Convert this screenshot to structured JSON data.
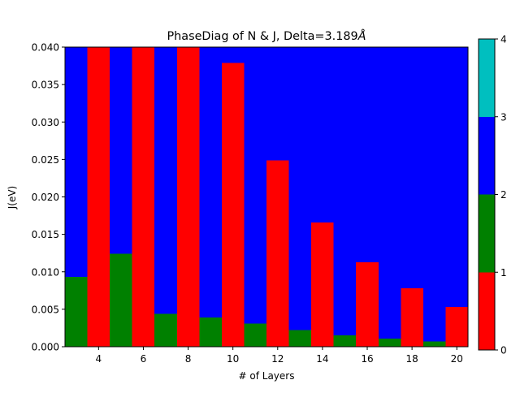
{
  "chart_data": {
    "type": "heatmap",
    "title": "PhaseDiag of N & J, Delta=3.189",
    "title_unit": "Å",
    "xlabel": "# of Layers",
    "ylabel": "J(eV)",
    "xlim": [
      2.5,
      20.5
    ],
    "ylim": [
      0,
      0.04
    ],
    "x_ticks": [
      4,
      6,
      8,
      10,
      12,
      14,
      16,
      18,
      20
    ],
    "x_tick_labels": [
      "4",
      "6",
      "8",
      "10",
      "12",
      "14",
      "16",
      "18",
      "20"
    ],
    "y_ticks": [
      0,
      0.005,
      0.01,
      0.015,
      0.02,
      0.025,
      0.03,
      0.035,
      0.04
    ],
    "y_tick_labels": [
      "0.000",
      "0.005",
      "0.010",
      "0.015",
      "0.020",
      "0.025",
      "0.030",
      "0.035",
      "0.040"
    ],
    "columns": [
      {
        "n": 3,
        "segments": [
          {
            "from": 0,
            "to": 0.0093,
            "phase": 1
          },
          {
            "from": 0.0093,
            "to": 0.04,
            "phase": 2
          }
        ]
      },
      {
        "n": 4,
        "segments": [
          {
            "from": 0,
            "to": 0.04,
            "phase": 0
          }
        ]
      },
      {
        "n": 5,
        "segments": [
          {
            "from": 0,
            "to": 0.0124,
            "phase": 1
          },
          {
            "from": 0.0124,
            "to": 0.04,
            "phase": 2
          }
        ]
      },
      {
        "n": 6,
        "segments": [
          {
            "from": 0,
            "to": 0.04,
            "phase": 0
          }
        ]
      },
      {
        "n": 7,
        "segments": [
          {
            "from": 0,
            "to": 0.0044,
            "phase": 1
          },
          {
            "from": 0.0044,
            "to": 0.04,
            "phase": 2
          }
        ]
      },
      {
        "n": 8,
        "segments": [
          {
            "from": 0,
            "to": 0.04,
            "phase": 0
          }
        ]
      },
      {
        "n": 9,
        "segments": [
          {
            "from": 0,
            "to": 0.0039,
            "phase": 1
          },
          {
            "from": 0.0039,
            "to": 0.04,
            "phase": 2
          }
        ]
      },
      {
        "n": 10,
        "segments": [
          {
            "from": 0,
            "to": 0.0379,
            "phase": 0
          },
          {
            "from": 0.0379,
            "to": 0.04,
            "phase": 2
          }
        ]
      },
      {
        "n": 11,
        "segments": [
          {
            "from": 0,
            "to": 0.0031,
            "phase": 1
          },
          {
            "from": 0.0031,
            "to": 0.04,
            "phase": 2
          }
        ]
      },
      {
        "n": 12,
        "segments": [
          {
            "from": 0,
            "to": 0.0249,
            "phase": 0
          },
          {
            "from": 0.0249,
            "to": 0.04,
            "phase": 2
          }
        ]
      },
      {
        "n": 13,
        "segments": [
          {
            "from": 0,
            "to": 0.0022,
            "phase": 1
          },
          {
            "from": 0.0022,
            "to": 0.04,
            "phase": 2
          }
        ]
      },
      {
        "n": 14,
        "segments": [
          {
            "from": 0,
            "to": 0.0166,
            "phase": 0
          },
          {
            "from": 0.0166,
            "to": 0.04,
            "phase": 2
          }
        ]
      },
      {
        "n": 15,
        "segments": [
          {
            "from": 0,
            "to": 0.0015,
            "phase": 1
          },
          {
            "from": 0.0015,
            "to": 0.04,
            "phase": 2
          }
        ]
      },
      {
        "n": 16,
        "segments": [
          {
            "from": 0,
            "to": 0.0113,
            "phase": 0
          },
          {
            "from": 0.0113,
            "to": 0.04,
            "phase": 2
          }
        ]
      },
      {
        "n": 17,
        "segments": [
          {
            "from": 0,
            "to": 0.0011,
            "phase": 1
          },
          {
            "from": 0.0011,
            "to": 0.04,
            "phase": 2
          }
        ]
      },
      {
        "n": 18,
        "segments": [
          {
            "from": 0,
            "to": 0.0078,
            "phase": 0
          },
          {
            "from": 0.0078,
            "to": 0.04,
            "phase": 2
          }
        ]
      },
      {
        "n": 19,
        "segments": [
          {
            "from": 0,
            "to": 0.0007,
            "phase": 1
          },
          {
            "from": 0.0007,
            "to": 0.04,
            "phase": 2
          }
        ]
      },
      {
        "n": 20,
        "segments": [
          {
            "from": 0,
            "to": 0.0053,
            "phase": 0
          },
          {
            "from": 0.0053,
            "to": 0.04,
            "phase": 2
          }
        ]
      }
    ],
    "colorbar": {
      "ticks": [
        0,
        1,
        2,
        3,
        4
      ],
      "tick_labels": [
        "0",
        "1",
        "2",
        "3",
        "4"
      ],
      "colors": [
        "#ff0000",
        "#008000",
        "#0000ff",
        "#00bfbf"
      ]
    },
    "grid": false
  }
}
